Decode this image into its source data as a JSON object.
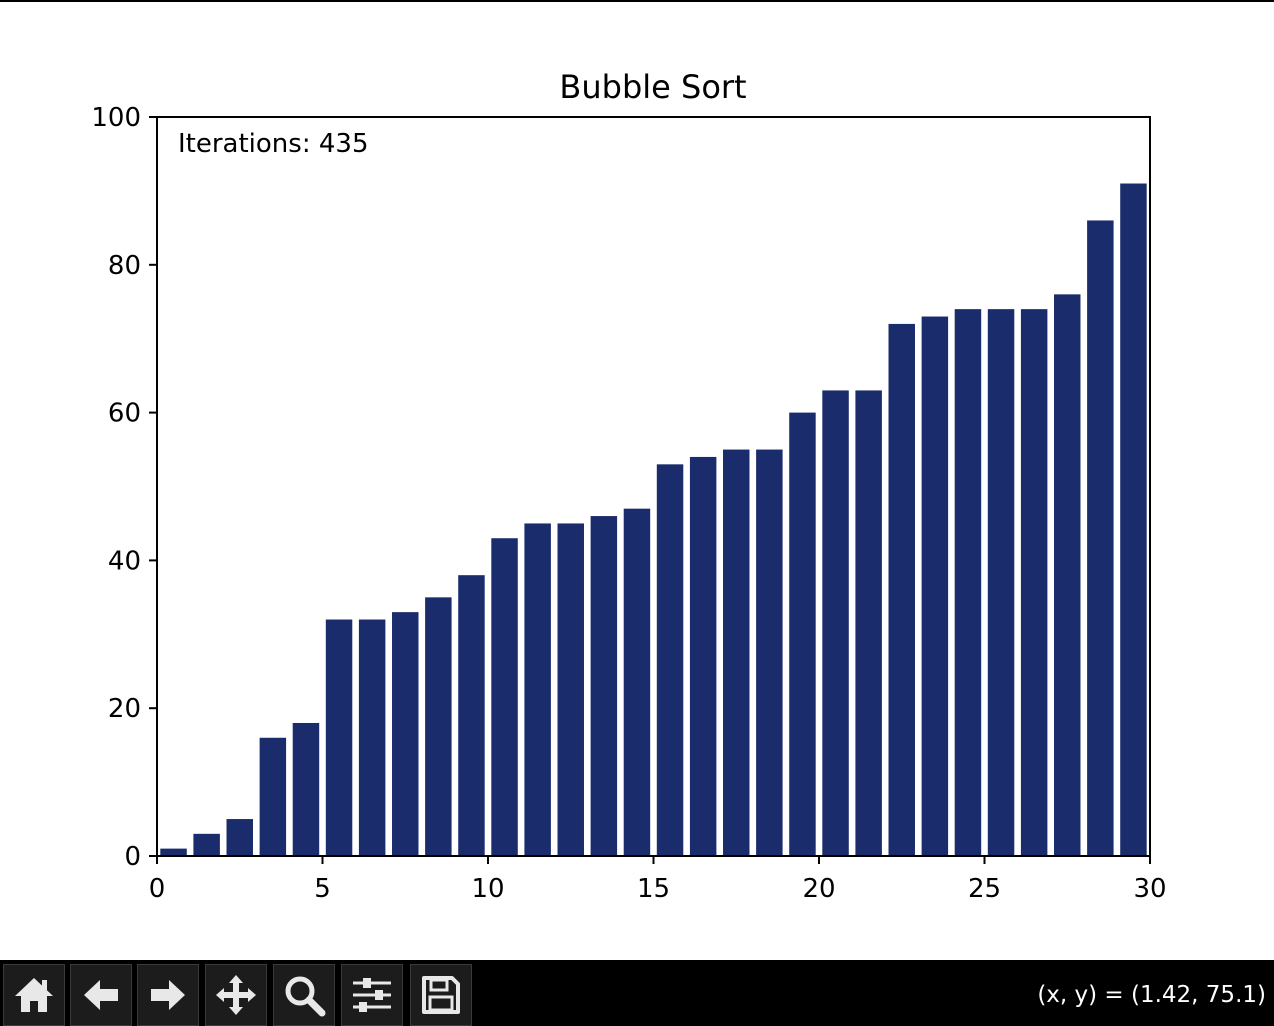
{
  "window": {
    "coordinate_readout": "(x, y) = (1.42, 75.1)"
  },
  "toolbar": {
    "buttons": [
      {
        "name": "home",
        "icon": "home-icon"
      },
      {
        "name": "back",
        "icon": "arrow-left-icon"
      },
      {
        "name": "forward",
        "icon": "arrow-right-icon"
      },
      {
        "name": "pan",
        "icon": "move-icon"
      },
      {
        "name": "zoom",
        "icon": "magnifier-icon"
      },
      {
        "name": "configure-subplots",
        "icon": "sliders-icon"
      },
      {
        "name": "save",
        "icon": "floppy-disk-icon"
      }
    ]
  },
  "chart_data": {
    "type": "bar",
    "title": "Bubble Sort",
    "annotation": "Iterations: 435",
    "x": [
      0.5,
      1.5,
      2.5,
      3.5,
      4.5,
      5.5,
      6.5,
      7.5,
      8.5,
      9.5,
      10.5,
      11.5,
      12.5,
      13.5,
      14.5,
      15.5,
      16.5,
      17.5,
      18.5,
      19.5,
      20.5,
      21.5,
      22.5,
      23.5,
      24.5,
      25.5,
      26.5,
      27.5,
      28.5,
      29.5
    ],
    "values": [
      1,
      3,
      5,
      16,
      18,
      32,
      32,
      33,
      35,
      38,
      43,
      45,
      45,
      46,
      47,
      53,
      54,
      55,
      55,
      60,
      63,
      63,
      72,
      73,
      74,
      74,
      74,
      76,
      86,
      91
    ],
    "bar_width": 0.8,
    "bar_color": "#1a2c6b",
    "xlim": [
      0,
      30
    ],
    "ylim": [
      0,
      100
    ],
    "xticks": [
      0,
      5,
      10,
      15,
      20,
      25,
      30
    ],
    "yticks": [
      0,
      20,
      40,
      60,
      80,
      100
    ],
    "grid": false,
    "xlabel": "",
    "ylabel": ""
  }
}
